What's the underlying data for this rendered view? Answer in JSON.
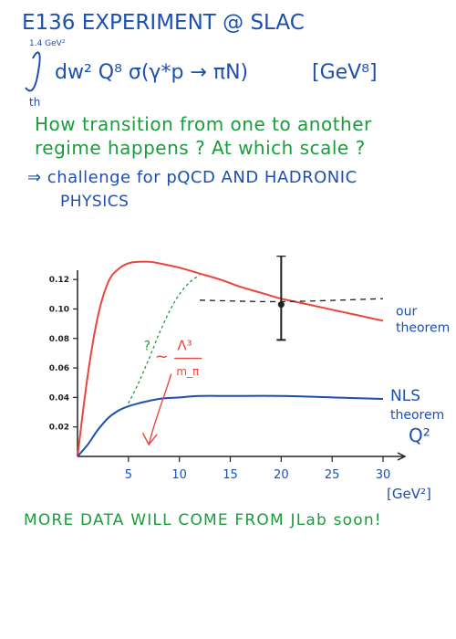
{
  "header": {
    "title": "E136 EXPERIMENT @ SLAC",
    "integral_upper": "1.4 GeV²",
    "integral_lower": "th",
    "formula": "dw² Q⁸ σ(γ*p → πN)",
    "formula_unit": "[GeV⁸]"
  },
  "question": {
    "line1": "How transition from one to another",
    "line2": "regime happens ? At which scale ?"
  },
  "conclusion": {
    "line1": "⇒ challenge for pQCD AND HADRONIC",
    "line2": "PHYSICS"
  },
  "footer": "MORE DATA WILL COME FROM JLab soon!",
  "colors": {
    "ink": "#1c4fb0",
    "green": "#1a9c3c",
    "red": "#e8463c",
    "axis": "#222222"
  },
  "chart_data": {
    "type": "line",
    "xlabel": "Q²",
    "xunit": "[GeV²]",
    "xticks": [
      5,
      10,
      15,
      20,
      25,
      30
    ],
    "yticks": [
      0.02,
      0.04,
      0.06,
      0.08,
      0.1,
      0.12
    ],
    "ytick_labels": [
      "0.02",
      "0.04",
      "0.06",
      "0.08",
      "0.10",
      "0.12"
    ],
    "xlim": [
      0,
      30
    ],
    "ylim": [
      0,
      0.13
    ],
    "series": [
      {
        "name": "our theorem",
        "style": "solid",
        "color": "#e8463c",
        "x": [
          0,
          1,
          2,
          3,
          4,
          5,
          6,
          7,
          8,
          10,
          12,
          14,
          16,
          18,
          20,
          22,
          24,
          26,
          28,
          30
        ],
        "y": [
          0,
          0.055,
          0.095,
          0.118,
          0.127,
          0.131,
          0.132,
          0.132,
          0.131,
          0.128,
          0.124,
          0.12,
          0.115,
          0.111,
          0.107,
          0.104,
          0.101,
          0.098,
          0.095,
          0.092
        ]
      },
      {
        "name": "NLS theorem",
        "style": "solid",
        "color": "#1c4fb0",
        "x": [
          0,
          1,
          2,
          3,
          4,
          5,
          6,
          8,
          10,
          12,
          15,
          20,
          25,
          30
        ],
        "y": [
          0,
          0.008,
          0.018,
          0.026,
          0.031,
          0.034,
          0.036,
          0.039,
          0.04,
          0.041,
          0.041,
          0.041,
          0.04,
          0.039
        ]
      },
      {
        "style": "dashed",
        "color": "#1a9c3c",
        "x": [
          5,
          6,
          7,
          8,
          9,
          10,
          11,
          12
        ],
        "y": [
          0.036,
          0.05,
          0.066,
          0.083,
          0.098,
          0.11,
          0.118,
          0.123
        ]
      },
      {
        "style": "dashed",
        "color": "#222222",
        "x": [
          12,
          20,
          30
        ],
        "y": [
          0.106,
          0.105,
          0.107
        ]
      }
    ],
    "data_point": {
      "x": 20,
      "y": 0.103,
      "err_low": 0.079,
      "err_high": 0.136
    },
    "annotations": {
      "question_mark": "?",
      "scale_numerator": "Λ³",
      "scale_denominator": "m_π",
      "scale_tilde": "~"
    }
  }
}
